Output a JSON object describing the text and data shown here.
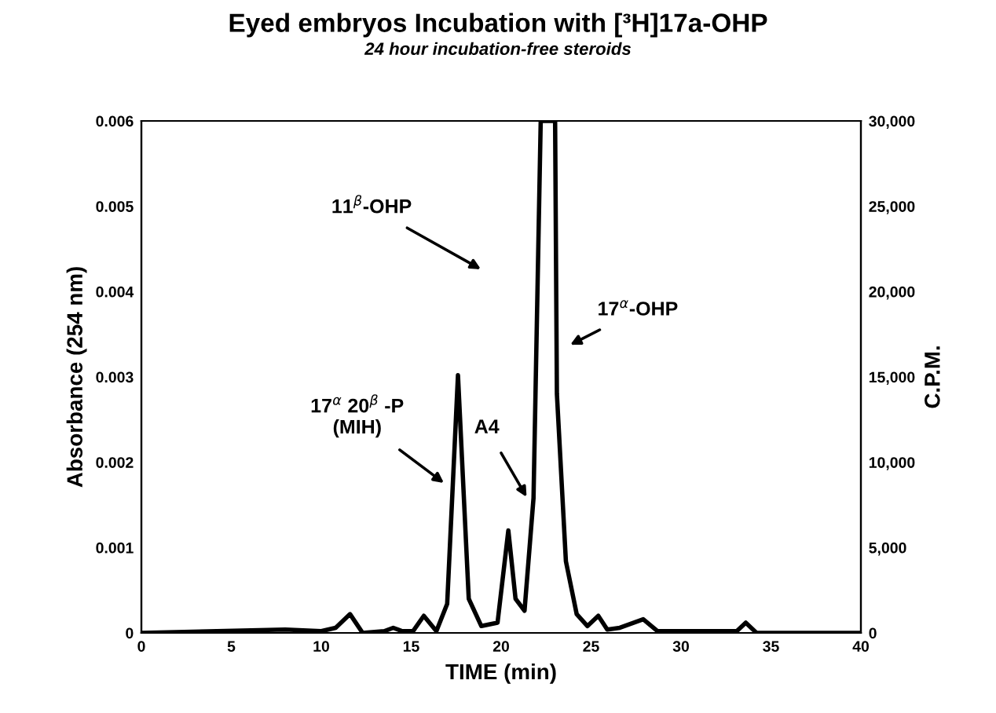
{
  "chart_data": {
    "type": "line",
    "title": "Eyed embryos Incubation with [³H]17a-OHP",
    "subtitle": "24 hour incubation-free steroids",
    "xlabel": "TIME (min)",
    "ylabel": "Absorbance (254 nm)",
    "y2label": "C.P.M.",
    "xlim": [
      0,
      40
    ],
    "xticks": [
      0,
      5,
      10,
      15,
      20,
      25,
      30,
      35,
      40
    ],
    "ylim": [
      0,
      0.006
    ],
    "yticks": [
      0,
      0.001,
      0.002,
      0.003,
      0.004,
      0.005,
      0.006
    ],
    "y2lim": [
      0,
      30000
    ],
    "y2ticks": [
      0,
      {
        "value": 5000,
        "label": "5,000"
      },
      {
        "value": 10000,
        "label": "10,000"
      },
      {
        "value": 15000,
        "label": "15,000"
      },
      {
        "value": 20000,
        "label": "20,000"
      },
      {
        "value": 25000,
        "label": "25,000"
      },
      {
        "value": 30000,
        "label": "30,000"
      }
    ],
    "grid": false,
    "marker": "none",
    "line_style": "solid",
    "series": [
      {
        "axis": "y2",
        "color": "#000000",
        "x": [
          0,
          8,
          10,
          10.8,
          11.6,
          12.3,
          13.5,
          14,
          14.5,
          15.1,
          15.7,
          16.4,
          17.0,
          17.6,
          18.2,
          18.9,
          19.8,
          20.4,
          20.8,
          21.3,
          21.8,
          22.2,
          23.0,
          23.1,
          23.6,
          24.2,
          24.8,
          25.4,
          25.9,
          26.6,
          27.9,
          28.7,
          30,
          32,
          33.1,
          33.6,
          34.2,
          40
        ],
        "values": [
          0,
          200,
          100,
          300,
          1100,
          0,
          100,
          300,
          100,
          100,
          1000,
          100,
          1700,
          15100,
          2000,
          400,
          600,
          6000,
          2000,
          1300,
          7900,
          30000,
          30000,
          14000,
          4200,
          1100,
          400,
          1000,
          200,
          300,
          800,
          100,
          100,
          100,
          100,
          600,
          0,
          0
        ]
      }
    ],
    "annotations": [
      "11$^{β}$-OHP",
      "17$^{α}$-OHP",
      "17$^{α}$ 20$^{β}$ -P\n(MIH)",
      "A4"
    ]
  }
}
